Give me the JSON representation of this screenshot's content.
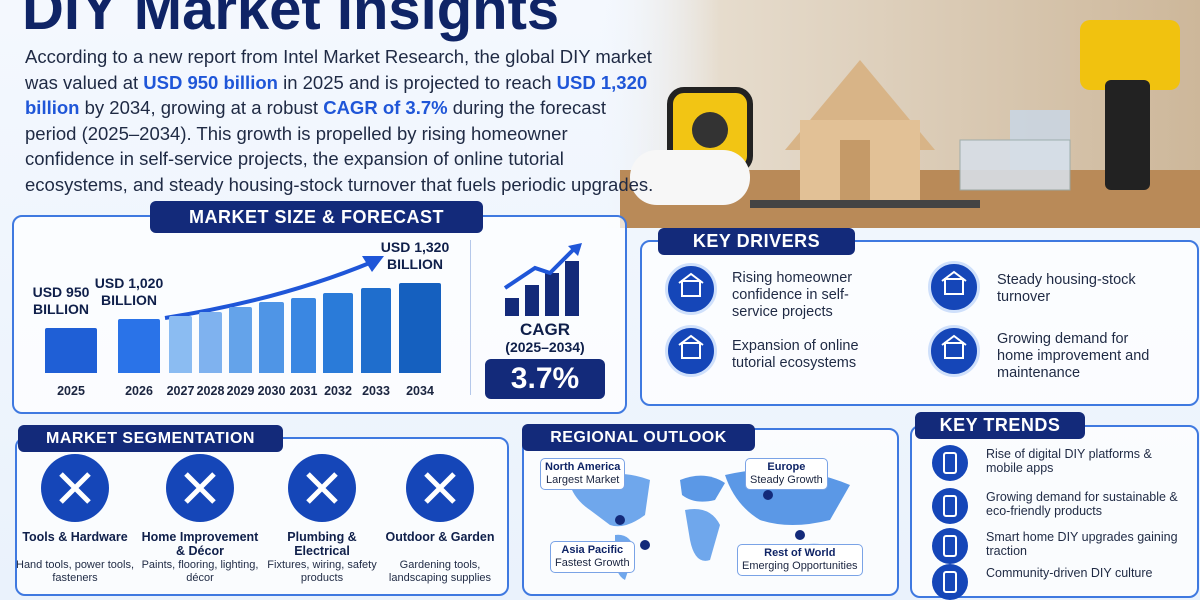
{
  "header": {
    "title": "DIY Market Insights",
    "intro": [
      "According to a new report from Intel Market Research, the global DIY market was valued at ",
      "USD 950 billion",
      " in 2025 and is projected to reach ",
      "USD 1,320 billion",
      " by 2034, growing at a robust ",
      "CAGR of 3.7%",
      " during the forecast period (2025–2034). This growth is propelled by rising homeowner confidence in self-service projects, the expansion of online tutorial ecosystems, and steady housing-stock turnover that fuels periodic upgrades."
    ]
  },
  "market_size": {
    "heading": "MARKET SIZE & FORECAST",
    "cagr_label": "CAGR",
    "cagr_period": "(2025–2034)",
    "cagr_value": "3.7%"
  },
  "chart_data": {
    "type": "bar",
    "categories": [
      "2025",
      "2026",
      "2027",
      "2028",
      "2029",
      "2030",
      "2031",
      "2032",
      "2033",
      "2034"
    ],
    "values": [
      950,
      1020,
      1050,
      1085,
      1125,
      1165,
      1200,
      1240,
      1280,
      1320
    ],
    "value_labels": [
      "USD 950 BILLION",
      "USD 1,020 BILLION",
      null,
      null,
      null,
      null,
      null,
      null,
      null,
      "USD 1,320 BILLION"
    ],
    "colors": [
      "#1f5fd6",
      "#2a73e8",
      "#8bbcf2",
      "#7fb2ef",
      "#64a3ea",
      "#4f95e6",
      "#3a87e2",
      "#2a7bd9",
      "#1f6ecd",
      "#1560bf"
    ]
  },
  "key_drivers": {
    "heading": "KEY DRIVERS",
    "items": [
      "Rising homeowner confidence in self-service projects",
      "Expansion of online tutorial ecosystems",
      "Steady housing-stock turnover",
      "Growing demand for home improvement and maintenance"
    ]
  },
  "segmentation": {
    "heading": "MARKET SEGMENTATION",
    "items": [
      {
        "title": "Tools & Hardware",
        "desc": "Hand tools, power tools, fasteners"
      },
      {
        "title": "Home Improvement & Décor",
        "desc": "Paints, flooring, lighting, décor"
      },
      {
        "title": "Plumbing & Electrical",
        "desc": "Fixtures, wiring, safety products"
      },
      {
        "title": "Outdoor & Garden",
        "desc": "Gardening tools, landscaping supplies"
      }
    ]
  },
  "regional": {
    "heading": "REGIONAL OUTLOOK",
    "regions": [
      {
        "name": "North America",
        "note": "Largest Market"
      },
      {
        "name": "Europe",
        "note": "Steady Growth"
      },
      {
        "name": "Asia Pacific",
        "note": "Fastest Growth"
      },
      {
        "name": "Rest of World",
        "note": "Emerging Opportunities"
      }
    ]
  },
  "key_trends": {
    "heading": "KEY TRENDS",
    "items": [
      "Rise of digital DIY platforms & mobile apps",
      "Growing demand for sustainable & eco-friendly products",
      "Smart home DIY upgrades gaining traction",
      "Community-driven DIY culture"
    ]
  }
}
